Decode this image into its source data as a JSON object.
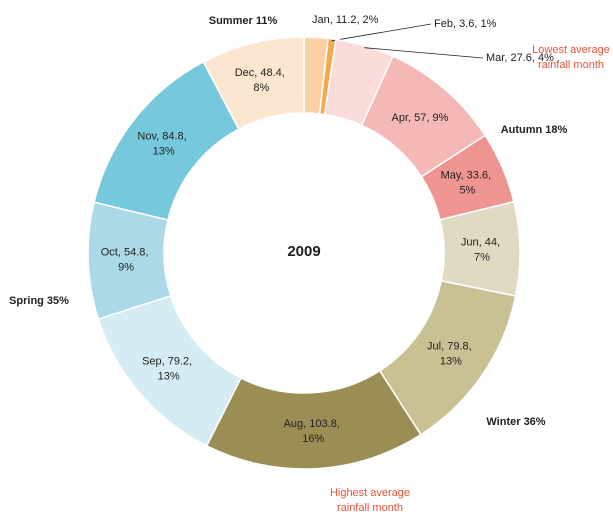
{
  "chart_data": {
    "type": "donut",
    "title": "2009",
    "categories": [
      "Jan",
      "Feb",
      "Mar",
      "Apr",
      "May",
      "Jun",
      "Jul",
      "Aug",
      "Sep",
      "Oct",
      "Nov",
      "Dec"
    ],
    "values": [
      11.2,
      3.6,
      27.6,
      57,
      33.6,
      44,
      79.8,
      103.8,
      79.2,
      54.8,
      84.8,
      48.4
    ],
    "value_labels": [
      "Jan, 11.2, 2%",
      "Feb, 3.6, 1%",
      "Mar, 27.6, 4%",
      "Apr, 57, 9%",
      "May, 33.6, 5%",
      "Jun, 44, 7%",
      "Jul, 79.8, 13%",
      "Aug, 103.8, 16%",
      "Sep, 79.2, 13%",
      "Oct, 54.8, 9%",
      "Nov, 84.8, 13%",
      "Dec, 48.4, 8%"
    ],
    "colors": [
      "#fcd0a6",
      "#f5a94f",
      "#fadcda",
      "#f4b8b6",
      "#ee9491",
      "#e1dac3",
      "#c9c093",
      "#9b8e55",
      "#d6ecf5",
      "#abd9e8",
      "#76c9dd",
      "#fde6d0"
    ],
    "annotations": [
      {
        "lines": [
          "Summer 11%"
        ]
      },
      {
        "lines": [
          "Autumn 18%"
        ]
      },
      {
        "lines": [
          "Winter 36%"
        ]
      },
      {
        "lines": [
          "Spring 35%"
        ]
      },
      {
        "lines": [
          "Lowest average",
          "rainfall month"
        ]
      },
      {
        "lines": [
          "Highest average",
          "rainfall month"
        ]
      }
    ]
  }
}
